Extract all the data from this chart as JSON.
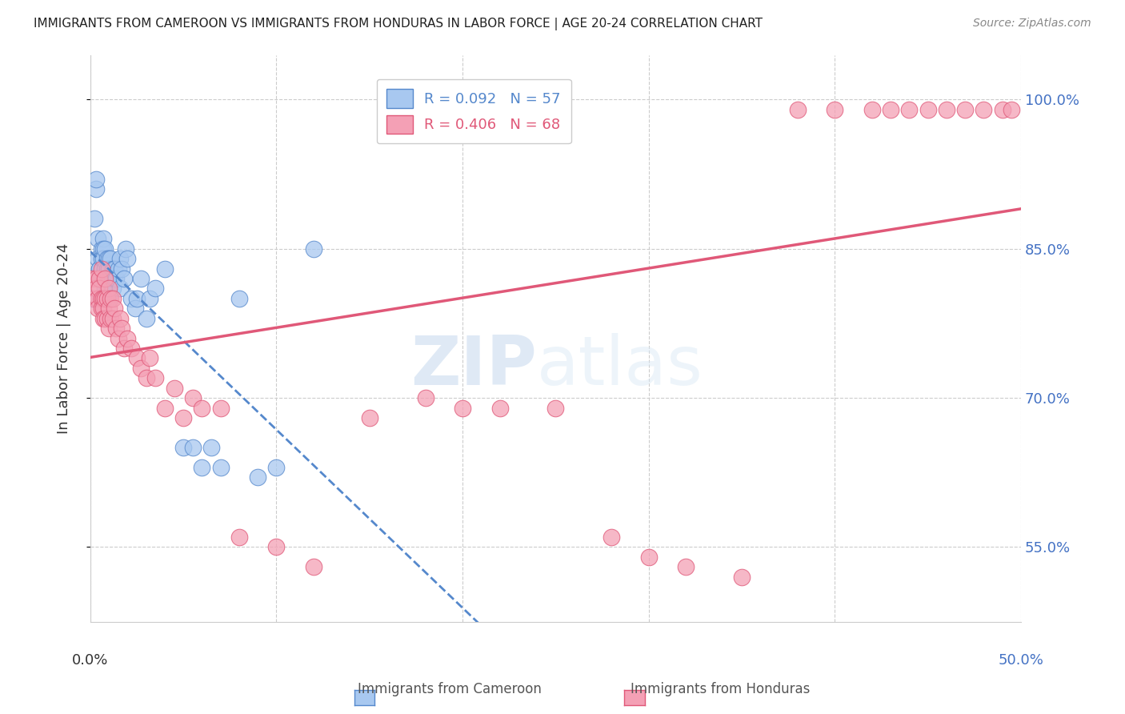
{
  "title": "IMMIGRANTS FROM CAMEROON VS IMMIGRANTS FROM HONDURAS IN LABOR FORCE | AGE 20-24 CORRELATION CHART",
  "source": "Source: ZipAtlas.com",
  "ylabel": "In Labor Force | Age 20-24",
  "xlim": [
    0.0,
    0.5
  ],
  "ylim": [
    0.475,
    1.045
  ],
  "yticks": [
    0.55,
    0.7,
    0.85,
    1.0
  ],
  "ytick_labels": [
    "55.0%",
    "70.0%",
    "85.0%",
    "100.0%"
  ],
  "legend_r_cameroon": "R = 0.092",
  "legend_n_cameroon": "N = 57",
  "legend_r_honduras": "R = 0.406",
  "legend_n_honduras": "N = 68",
  "color_cameroon": "#A8C8F0",
  "color_honduras": "#F4A0B5",
  "line_color_cameroon": "#5588CC",
  "line_color_honduras": "#E05878",
  "watermark_zip": "ZIP",
  "watermark_atlas": "atlas",
  "cameroon_x": [
    0.001,
    0.002,
    0.003,
    0.003,
    0.004,
    0.004,
    0.005,
    0.005,
    0.005,
    0.006,
    0.006,
    0.006,
    0.007,
    0.007,
    0.007,
    0.007,
    0.008,
    0.008,
    0.008,
    0.009,
    0.009,
    0.009,
    0.01,
    0.01,
    0.01,
    0.01,
    0.011,
    0.011,
    0.012,
    0.012,
    0.013,
    0.013,
    0.014,
    0.015,
    0.016,
    0.016,
    0.017,
    0.018,
    0.019,
    0.02,
    0.022,
    0.024,
    0.025,
    0.027,
    0.03,
    0.032,
    0.035,
    0.04,
    0.05,
    0.055,
    0.06,
    0.065,
    0.07,
    0.08,
    0.09,
    0.1,
    0.12
  ],
  "cameroon_y": [
    0.8,
    0.88,
    0.91,
    0.92,
    0.86,
    0.84,
    0.83,
    0.83,
    0.82,
    0.85,
    0.84,
    0.82,
    0.86,
    0.85,
    0.84,
    0.82,
    0.85,
    0.83,
    0.81,
    0.84,
    0.83,
    0.81,
    0.84,
    0.83,
    0.82,
    0.8,
    0.84,
    0.82,
    0.83,
    0.81,
    0.83,
    0.82,
    0.82,
    0.83,
    0.84,
    0.81,
    0.83,
    0.82,
    0.85,
    0.84,
    0.8,
    0.79,
    0.8,
    0.82,
    0.78,
    0.8,
    0.81,
    0.83,
    0.65,
    0.65,
    0.63,
    0.65,
    0.63,
    0.8,
    0.62,
    0.63,
    0.85
  ],
  "honduras_x": [
    0.001,
    0.002,
    0.003,
    0.003,
    0.004,
    0.004,
    0.005,
    0.005,
    0.006,
    0.006,
    0.006,
    0.007,
    0.007,
    0.007,
    0.008,
    0.008,
    0.008,
    0.009,
    0.009,
    0.01,
    0.01,
    0.01,
    0.011,
    0.011,
    0.012,
    0.012,
    0.013,
    0.014,
    0.015,
    0.016,
    0.017,
    0.018,
    0.02,
    0.022,
    0.025,
    0.027,
    0.03,
    0.032,
    0.035,
    0.04,
    0.045,
    0.05,
    0.055,
    0.06,
    0.07,
    0.08,
    0.1,
    0.12,
    0.15,
    0.18,
    0.2,
    0.22,
    0.25,
    0.28,
    0.3,
    0.32,
    0.35,
    0.38,
    0.4,
    0.42,
    0.43,
    0.44,
    0.45,
    0.46,
    0.47,
    0.48,
    0.49,
    0.495
  ],
  "honduras_y": [
    0.82,
    0.8,
    0.82,
    0.81,
    0.8,
    0.79,
    0.82,
    0.81,
    0.83,
    0.8,
    0.79,
    0.8,
    0.79,
    0.78,
    0.82,
    0.8,
    0.78,
    0.8,
    0.78,
    0.81,
    0.79,
    0.77,
    0.8,
    0.78,
    0.8,
    0.78,
    0.79,
    0.77,
    0.76,
    0.78,
    0.77,
    0.75,
    0.76,
    0.75,
    0.74,
    0.73,
    0.72,
    0.74,
    0.72,
    0.69,
    0.71,
    0.68,
    0.7,
    0.69,
    0.69,
    0.56,
    0.55,
    0.53,
    0.68,
    0.7,
    0.69,
    0.69,
    0.69,
    0.56,
    0.54,
    0.53,
    0.52,
    0.99,
    0.99,
    0.99,
    0.99,
    0.99,
    0.99,
    0.99,
    0.99,
    0.99,
    0.99,
    0.99
  ]
}
